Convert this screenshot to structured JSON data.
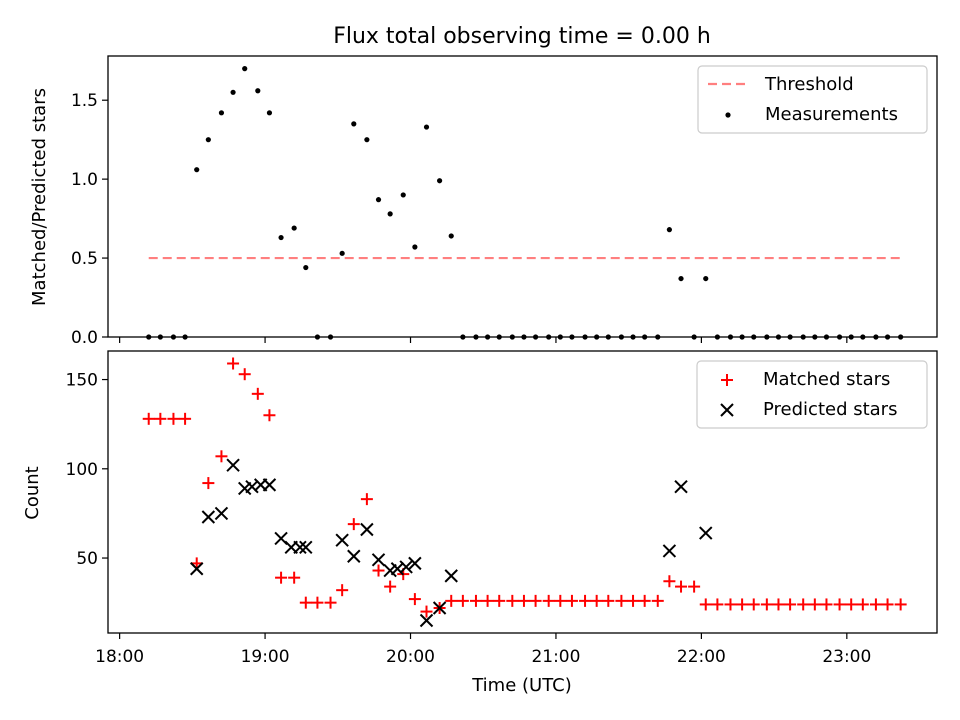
{
  "chart_data": {
    "title": "Flux total observing time = 0.00 h",
    "x_unit": "hours UTC",
    "xlim": [
      17.92,
      23.62
    ],
    "x_ticks": [
      {
        "value": 18,
        "label": "18:00"
      },
      {
        "value": 19,
        "label": "19:00"
      },
      {
        "value": 20,
        "label": "20:00"
      },
      {
        "value": 21,
        "label": "21:00"
      },
      {
        "value": 22,
        "label": "22:00"
      },
      {
        "value": 23,
        "label": "23:00"
      }
    ],
    "top": {
      "type": "scatter",
      "ylabel": "Matched/Predicted stars",
      "ylim": [
        0,
        1.78
      ],
      "y_ticks": [
        {
          "value": 0,
          "label": "0.0"
        },
        {
          "value": 0.5,
          "label": "0.5"
        },
        {
          "value": 1.0,
          "label": "1.0"
        },
        {
          "value": 1.5,
          "label": "1.5"
        }
      ],
      "threshold": {
        "name": "Threshold",
        "value": 0.5,
        "x_range": [
          18.2,
          23.37
        ],
        "color": "#ff7f7f"
      },
      "series": {
        "name": "Measurements",
        "color": "#000000",
        "x": [
          18.2,
          18.28,
          18.37,
          18.45,
          18.53,
          18.61,
          18.7,
          18.78,
          18.86,
          18.95,
          19.03,
          19.11,
          19.2,
          19.28,
          19.36,
          19.45,
          19.53,
          19.61,
          19.7,
          19.78,
          19.86,
          19.95,
          20.03,
          20.11,
          20.2,
          20.28,
          20.36,
          20.45,
          20.53,
          20.61,
          20.7,
          20.78,
          20.86,
          20.95,
          21.03,
          21.11,
          21.2,
          21.28,
          21.36,
          21.45,
          21.53,
          21.61,
          21.7,
          21.78,
          21.86,
          21.95,
          22.03,
          22.11,
          22.2,
          22.28,
          22.36,
          22.45,
          22.53,
          22.61,
          22.7,
          22.78,
          22.86,
          22.95,
          23.03,
          23.11,
          23.2,
          23.28,
          23.37
        ],
        "y": [
          0,
          0,
          0,
          0,
          1.06,
          1.25,
          1.42,
          1.55,
          1.7,
          1.56,
          1.42,
          0.63,
          0.69,
          0.44,
          0,
          0,
          0.53,
          1.35,
          1.25,
          0.87,
          0.78,
          0.9,
          0.57,
          1.33,
          0.99,
          0.64,
          0,
          0,
          0,
          0,
          0,
          0,
          0,
          0,
          0,
          0,
          0,
          0,
          0,
          0,
          0,
          0,
          0,
          0.68,
          0.37,
          0,
          0.37,
          0,
          0,
          0,
          0,
          0,
          0,
          0,
          0,
          0,
          0,
          0,
          0,
          0,
          0,
          0,
          0
        ]
      }
    },
    "bottom": {
      "type": "scatter",
      "ylabel": "Count",
      "xlabel": "Time (UTC)",
      "ylim": [
        8,
        166
      ],
      "y_ticks": [
        {
          "value": 50,
          "label": "50"
        },
        {
          "value": 100,
          "label": "100"
        },
        {
          "value": 150,
          "label": "150"
        }
      ],
      "matched": {
        "name": "Matched stars",
        "color": "#ff0000",
        "marker": "+",
        "x": [
          18.2,
          18.28,
          18.37,
          18.45,
          18.53,
          18.61,
          18.7,
          18.78,
          18.86,
          18.95,
          19.03,
          19.11,
          19.2,
          19.28,
          19.36,
          19.45,
          19.53,
          19.61,
          19.7,
          19.78,
          19.86,
          19.95,
          20.03,
          20.11,
          20.2,
          20.28,
          20.36,
          20.45,
          20.53,
          20.61,
          20.7,
          20.78,
          20.86,
          20.95,
          21.03,
          21.11,
          21.2,
          21.28,
          21.36,
          21.45,
          21.53,
          21.61,
          21.7,
          21.78,
          21.86,
          21.95,
          22.03,
          22.11,
          22.2,
          22.28,
          22.36,
          22.45,
          22.53,
          22.61,
          22.7,
          22.78,
          22.86,
          22.95,
          23.03,
          23.11,
          23.2,
          23.28,
          23.37
        ],
        "y": [
          128,
          128,
          128,
          128,
          47,
          92,
          107,
          159,
          153,
          142,
          130,
          39,
          39,
          25,
          25,
          25,
          32,
          69,
          83,
          43,
          34,
          41,
          27,
          20,
          22,
          26,
          26,
          26,
          26,
          26,
          26,
          26,
          26,
          26,
          26,
          26,
          26,
          26,
          26,
          26,
          26,
          26,
          26,
          37,
          34,
          34,
          24,
          24,
          24,
          24,
          24,
          24,
          24,
          24,
          24,
          24,
          24,
          24,
          24,
          24,
          24,
          24,
          24
        ]
      },
      "predicted": {
        "name": "Predicted stars",
        "color": "#000000",
        "marker": "x",
        "x": [
          18.53,
          18.61,
          18.7,
          18.78,
          18.86,
          18.91,
          18.97,
          19.03,
          19.11,
          19.18,
          19.24,
          19.28,
          19.53,
          19.61,
          19.7,
          19.78,
          19.86,
          19.91,
          19.97,
          20.03,
          20.11,
          20.2,
          20.28,
          21.78,
          21.86,
          22.03
        ],
        "y": [
          44,
          73,
          75,
          102,
          89,
          90,
          91,
          91,
          61,
          56,
          56,
          56,
          60,
          51,
          66,
          49,
          43,
          44,
          45,
          47,
          15,
          22,
          40,
          54,
          90,
          64
        ]
      }
    }
  }
}
